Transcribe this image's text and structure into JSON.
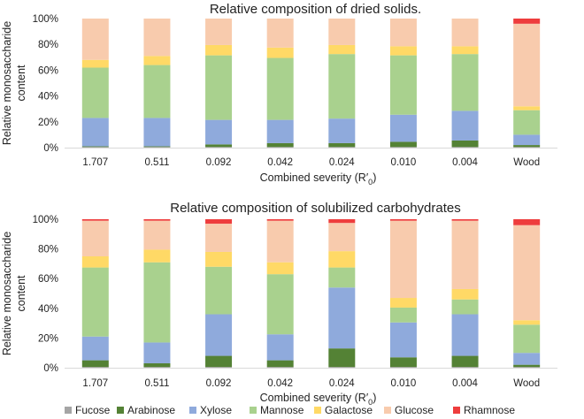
{
  "chart_data": [
    {
      "type": "bar",
      "stacked": true,
      "title": "Relative composition of dried solids.",
      "ylabel": "Relative monosaccharide content",
      "ylabel_lines": [
        "Relative monosaccharide",
        "content"
      ],
      "xlabel": "Combined severity    (R′",
      "xlabel_subscript": "0",
      "xlabel_suffix": ")",
      "categories": [
        "1.707",
        "0.511",
        "0.092",
        "0.042",
        "0.024",
        "0.010",
        "0.004",
        "Wood"
      ],
      "yticks": [
        "0%",
        "20%",
        "40%",
        "60%",
        "80%",
        "100%"
      ],
      "ylim": [
        0,
        100
      ],
      "series": [
        {
          "name": "Fucose",
          "values": [
            0.5,
            0.5,
            0.5,
            0.5,
            0.5,
            0.5,
            0.5,
            0.5
          ]
        },
        {
          "name": "Arabinose",
          "values": [
            0.5,
            0.5,
            2,
            3,
            3,
            4,
            5,
            1.5
          ]
        },
        {
          "name": "Xylose",
          "values": [
            22,
            22,
            19,
            18,
            19,
            21,
            23,
            8
          ]
        },
        {
          "name": "Mannose",
          "values": [
            39,
            41,
            50,
            48,
            50,
            46,
            44,
            19
          ]
        },
        {
          "name": "Galactose",
          "values": [
            6,
            7,
            8,
            8,
            7,
            7,
            6,
            3
          ]
        },
        {
          "name": "Glucose",
          "values": [
            32,
            29,
            20.5,
            22.5,
            20.5,
            21.5,
            21.5,
            64
          ]
        },
        {
          "name": "Rhamnose",
          "values": [
            0,
            0,
            0,
            0,
            0,
            0,
            0,
            4
          ]
        }
      ]
    },
    {
      "type": "bar",
      "stacked": true,
      "title": "Relative composition of solubilized carbohydrates",
      "ylabel": "Relative monosaccharide content",
      "ylabel_lines": [
        "Relative monosaccharide",
        "content"
      ],
      "xlabel": "Combined severity    (R′",
      "xlabel_subscript": "0",
      "xlabel_suffix": ")",
      "categories": [
        "1.707",
        "0.511",
        "0.092",
        "0.042",
        "0.024",
        "0.010",
        "0.004",
        "Wood"
      ],
      "yticks": [
        "0%",
        "20%",
        "40%",
        "60%",
        "80%",
        "100%"
      ],
      "ylim": [
        0,
        100
      ],
      "series": [
        {
          "name": "Fucose",
          "values": [
            0.5,
            0.5,
            0.5,
            0.5,
            0.5,
            0.5,
            0.5,
            0.5
          ]
        },
        {
          "name": "Arabinose",
          "values": [
            4.5,
            2.5,
            7.5,
            4.5,
            12.5,
            6.5,
            7.5,
            1.5
          ]
        },
        {
          "name": "Xylose",
          "values": [
            16,
            14,
            28,
            17.5,
            41,
            23.5,
            28,
            8
          ]
        },
        {
          "name": "Mannose",
          "values": [
            46.5,
            54,
            32,
            40.5,
            13.5,
            10,
            10,
            19
          ]
        },
        {
          "name": "Galactose",
          "values": [
            7.5,
            8.5,
            10,
            8,
            11,
            6.5,
            7,
            3
          ]
        },
        {
          "name": "Glucose",
          "values": [
            24,
            19.5,
            19,
            28,
            19,
            52,
            46,
            64
          ]
        },
        {
          "name": "Rhamnose",
          "values": [
            1,
            1,
            3,
            1,
            2.5,
            1,
            1,
            4
          ]
        }
      ]
    }
  ],
  "legend": [
    {
      "name": "Fucose",
      "color": "#a5a5a5"
    },
    {
      "name": "Arabinose",
      "color": "#548235"
    },
    {
      "name": "Xylose",
      "color": "#8faadc"
    },
    {
      "name": "Mannose",
      "color": "#a9d18e"
    },
    {
      "name": "Galactose",
      "color": "#ffd966"
    },
    {
      "name": "Glucose",
      "color": "#f8cbad"
    },
    {
      "name": "Rhamnose",
      "color": "#ee3d3d"
    }
  ]
}
